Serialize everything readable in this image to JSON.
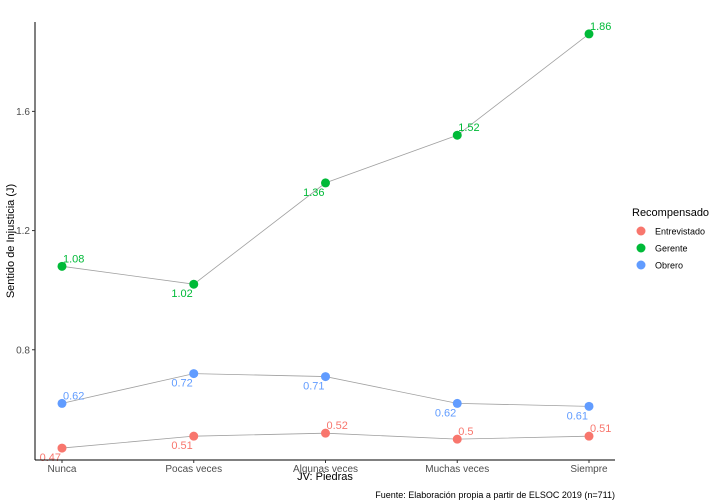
{
  "chart_data": {
    "type": "line",
    "title": "",
    "xlabel": "JV: Piedras",
    "ylabel": "Sentido de Injusticia (J)",
    "caption": "Fuente: Elaboración propia  a partir de ELSOC 2019 (n=711)",
    "categories": [
      "Nunca",
      "Pocas veces",
      "Algunas veces",
      "Muchas veces",
      "Siempre"
    ],
    "yticks": [
      "0.8",
      "1.2",
      "1.6"
    ],
    "ylim": [
      0.43,
      1.9
    ],
    "grid": false,
    "legend": {
      "title": "Recompensado",
      "position": "right"
    },
    "series": [
      {
        "name": "Entrevistado",
        "color": "#F8766D",
        "values": [
          0.47,
          0.51,
          0.52,
          0.5,
          0.51
        ],
        "labels": [
          "0.47",
          "0.51",
          "0.52",
          "0.5",
          "0.51"
        ],
        "label_pos": [
          "below",
          "below",
          "above",
          "above",
          "above"
        ]
      },
      {
        "name": "Gerente",
        "color": "#00BA38",
        "values": [
          1.08,
          1.02,
          1.36,
          1.52,
          1.86
        ],
        "labels": [
          "1.08",
          "1.02",
          "1.36",
          "1.52",
          "1.86"
        ],
        "label_pos": [
          "above",
          "below",
          "below",
          "above",
          "above"
        ]
      },
      {
        "name": "Obrero",
        "color": "#619CFF",
        "values": [
          0.62,
          0.72,
          0.71,
          0.62,
          0.61
        ],
        "labels": [
          "0.62",
          "0.72",
          "0.71",
          "0.62",
          "0.61"
        ],
        "label_pos": [
          "above",
          "below",
          "below",
          "below",
          "below"
        ]
      }
    ]
  }
}
